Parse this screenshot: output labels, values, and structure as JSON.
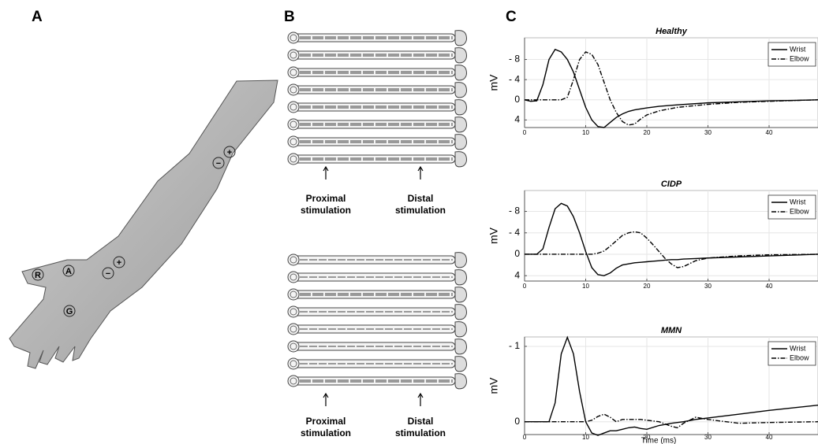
{
  "panel_a": {
    "label": "A",
    "markers": [
      "R",
      "A",
      "G"
    ],
    "signs": [
      "−",
      "+"
    ]
  },
  "panel_b": {
    "label": "B",
    "groups": [
      {
        "proximal": [
          "Proximal",
          "stimulation"
        ],
        "distal": [
          "Distal",
          "stimulation"
        ]
      },
      {
        "proximal": [
          "Proximal",
          "stimulation"
        ],
        "distal": [
          "Distal",
          "stimulation"
        ]
      }
    ]
  },
  "panel_c": {
    "label": "C"
  },
  "chart_data": [
    {
      "type": "line",
      "title": "Healthy",
      "ylabel": "mV",
      "invert_y": true,
      "grid": true,
      "legend": "upper right",
      "xlim": [
        0,
        48
      ],
      "xticks": [
        0,
        10,
        20,
        30,
        40
      ],
      "ylim": [
        -12.3,
        5.5
      ],
      "yticks": [
        {
          "value": -8,
          "label": "- 8"
        },
        {
          "value": -4,
          "label": "- 4"
        },
        0,
        4
      ],
      "x": [
        0,
        1,
        2,
        3,
        4,
        5,
        6,
        7,
        8,
        9,
        10,
        11,
        12,
        13,
        14,
        15,
        16,
        17,
        18,
        19,
        20,
        22,
        25,
        30,
        35,
        40,
        45,
        48
      ],
      "series": [
        {
          "name": "Wrist",
          "color": "#000000",
          "style": "solid",
          "values": [
            0,
            0.3,
            0.2,
            -3,
            -8,
            -10,
            -9.5,
            -8,
            -5.5,
            -2,
            1.5,
            4,
            5.3,
            5.5,
            4.5,
            3.5,
            2.8,
            2.3,
            2,
            1.8,
            1.6,
            1.3,
            1,
            0.6,
            0.4,
            0.2,
            0.1,
            0
          ]
        },
        {
          "name": "Elbow",
          "color": "#000000",
          "style": "dashdot",
          "values": [
            0,
            0,
            0,
            0,
            0,
            0,
            0,
            -0.5,
            -4,
            -8,
            -9.5,
            -9,
            -7,
            -3.5,
            0,
            2.5,
            4.3,
            5,
            4.8,
            3.8,
            3,
            2.2,
            1.5,
            0.9,
            0.5,
            0.3,
            0.1,
            0
          ]
        }
      ]
    },
    {
      "type": "line",
      "title": "CIDP",
      "ylabel": "mV",
      "invert_y": true,
      "grid": true,
      "legend": "upper right",
      "xlim": [
        0,
        48
      ],
      "xticks": [
        0,
        10,
        20,
        30,
        40
      ],
      "ylim": [
        -11.9,
        5
      ],
      "yticks": [
        {
          "value": -8,
          "label": "- 8"
        },
        {
          "value": -4,
          "label": "- 4"
        },
        0,
        4
      ],
      "x": [
        0,
        2,
        3,
        4,
        5,
        6,
        7,
        8,
        9,
        10,
        11,
        12,
        13,
        14,
        15,
        16,
        17,
        18,
        19,
        20,
        21,
        22,
        23,
        24,
        25,
        26,
        28,
        30,
        35,
        40,
        48
      ],
      "series": [
        {
          "name": "Wrist",
          "color": "#000000",
          "style": "solid",
          "values": [
            0,
            0,
            -1,
            -5,
            -8.5,
            -9.5,
            -9,
            -7,
            -4,
            -0.5,
            2.5,
            3.8,
            4,
            3.5,
            2.6,
            2,
            1.8,
            1.6,
            1.5,
            1.4,
            1.3,
            1.2,
            1.1,
            1,
            1,
            0.9,
            0.8,
            0.7,
            0.5,
            0.3,
            0
          ]
        },
        {
          "name": "Elbow",
          "color": "#000000",
          "style": "dashdot",
          "values": [
            0,
            0,
            0,
            0,
            0,
            0,
            0,
            0,
            0,
            0,
            0,
            -0.2,
            -0.6,
            -1.5,
            -2.5,
            -3.5,
            -4,
            -4.2,
            -4,
            -3,
            -1.8,
            -0.5,
            0.8,
            1.8,
            2.5,
            2.3,
            1.2,
            0.7,
            0.3,
            0.1,
            0
          ]
        }
      ]
    },
    {
      "type": "line",
      "title": "MMN",
      "ylabel": "mV",
      "xlabel": "Time (ms)",
      "invert_y": true,
      "grid": true,
      "legend": "upper right",
      "xlim": [
        0,
        48
      ],
      "xticks": [
        0,
        10,
        20,
        30,
        40
      ],
      "ylim": [
        -1.125,
        0.17
      ],
      "yticks": [
        {
          "value": -1,
          "label": "- 1"
        },
        0
      ],
      "x": [
        0,
        4,
        5,
        6,
        7,
        8,
        9,
        10,
        11,
        12,
        13,
        14,
        15,
        16,
        17,
        18,
        19,
        20,
        22,
        24,
        25,
        26,
        28,
        30,
        35,
        40,
        48
      ],
      "series": [
        {
          "name": "Wrist",
          "color": "#000000",
          "style": "solid",
          "values": [
            0,
            0,
            -0.25,
            -0.9,
            -1.12,
            -0.9,
            -0.4,
            0,
            0.15,
            0.18,
            0.15,
            0.12,
            0.12,
            0.1,
            0.08,
            0.07,
            0.09,
            0.1,
            0.05,
            0.02,
            0.01,
            0,
            -0.03,
            -0.05,
            -0.1,
            -0.15,
            -0.22
          ]
        },
        {
          "name": "Elbow",
          "color": "#000000",
          "style": "dashdot",
          "values": [
            0,
            0,
            0,
            0,
            0,
            0,
            0,
            0,
            -0.02,
            -0.07,
            -0.1,
            -0.06,
            0,
            -0.03,
            -0.03,
            -0.03,
            -0.03,
            -0.02,
            0,
            0.06,
            0.08,
            0.02,
            -0.06,
            -0.03,
            0.02,
            0.01,
            0
          ]
        }
      ]
    }
  ]
}
